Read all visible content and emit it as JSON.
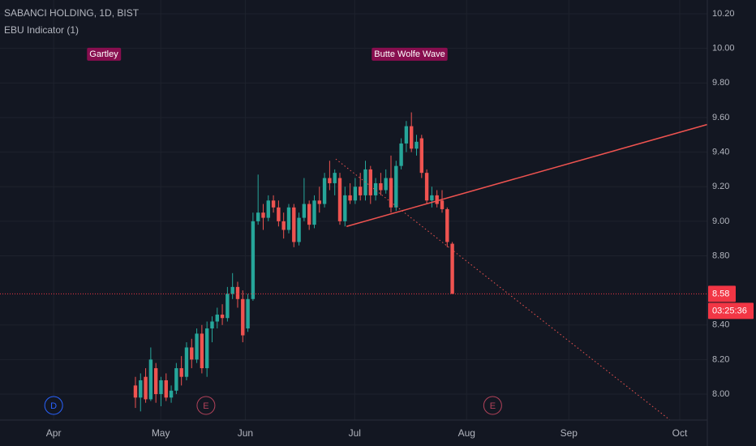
{
  "chart_data": {
    "type": "candlestick",
    "title": "SABANCI HOLDING, 1D, BIST",
    "indicator": "EBU Indicator (1)",
    "annotations": [
      "Gartley",
      "Butte Wolfe Wave"
    ],
    "up_color": "#26a69a",
    "down_color": "#ef5350",
    "x": [
      16,
      17,
      18,
      19,
      20,
      21,
      22,
      23,
      24,
      25,
      26,
      27,
      28,
      29,
      30,
      31,
      32,
      33,
      34,
      35,
      36,
      37,
      38,
      39,
      40,
      41,
      42,
      43,
      44,
      45,
      46,
      47,
      48,
      49,
      50,
      51,
      52,
      53,
      54,
      55,
      56,
      57,
      58,
      59,
      60,
      61,
      62,
      63,
      64,
      65,
      66,
      67,
      68,
      69,
      70,
      71,
      72,
      73,
      74,
      75,
      76,
      77,
      78
    ],
    "open": [
      8.05,
      7.98,
      8.1,
      7.97,
      8.15,
      8.0,
      8.08,
      7.98,
      8.02,
      8.15,
      8.1,
      8.27,
      8.2,
      8.35,
      8.15,
      8.38,
      8.42,
      8.46,
      8.44,
      8.58,
      8.62,
      8.55,
      8.38,
      8.55,
      9.0,
      9.05,
      9.02,
      9.12,
      9.08,
      9.0,
      8.95,
      9.08,
      8.88,
      9.02,
      9.1,
      8.98,
      9.12,
      9.1,
      9.25,
      9.22,
      9.25,
      9.0,
      9.15,
      9.12,
      9.2,
      9.15,
      9.3,
      9.15,
      9.22,
      9.18,
      9.25,
      9.08,
      9.32,
      9.45,
      9.55,
      9.42,
      9.48,
      9.28,
      9.12,
      9.15,
      9.12,
      9.07,
      8.87
    ],
    "high": [
      8.1,
      8.12,
      8.15,
      8.27,
      8.18,
      8.1,
      8.12,
      8.05,
      8.18,
      8.22,
      8.3,
      8.32,
      8.38,
      8.4,
      8.42,
      8.45,
      8.5,
      8.52,
      8.62,
      8.7,
      8.65,
      8.6,
      8.58,
      9.05,
      9.27,
      9.1,
      9.15,
      9.15,
      9.12,
      9.05,
      9.1,
      9.1,
      9.05,
      9.25,
      9.12,
      9.15,
      9.2,
      9.28,
      9.35,
      9.3,
      9.28,
      9.2,
      9.22,
      9.25,
      9.28,
      9.35,
      9.32,
      9.25,
      9.28,
      9.3,
      9.38,
      9.35,
      9.48,
      9.58,
      9.63,
      9.5,
      9.5,
      9.3,
      9.2,
      9.18,
      9.18,
      9.08,
      8.88
    ],
    "low": [
      7.92,
      7.9,
      7.95,
      7.96,
      7.95,
      7.93,
      7.96,
      7.95,
      8.0,
      8.05,
      8.08,
      8.15,
      8.18,
      8.12,
      8.1,
      8.3,
      8.38,
      8.4,
      8.42,
      8.55,
      8.5,
      8.3,
      8.36,
      8.54,
      8.98,
      8.95,
      9.0,
      9.05,
      8.97,
      8.9,
      8.93,
      8.85,
      8.86,
      9.0,
      8.95,
      8.96,
      9.05,
      9.08,
      9.18,
      9.15,
      8.98,
      8.97,
      9.1,
      9.1,
      9.12,
      9.12,
      9.1,
      9.12,
      9.15,
      9.16,
      9.05,
      9.06,
      9.3,
      9.4,
      9.4,
      9.38,
      9.25,
      9.1,
      9.08,
      9.08,
      9.05,
      8.85,
      8.58
    ],
    "close": [
      7.98,
      8.08,
      7.97,
      8.2,
      8.0,
      8.08,
      7.98,
      8.02,
      8.15,
      8.1,
      8.27,
      8.2,
      8.35,
      8.15,
      8.38,
      8.42,
      8.46,
      8.44,
      8.58,
      8.62,
      8.55,
      8.34,
      8.55,
      9.0,
      9.05,
      9.02,
      9.12,
      9.08,
      9.0,
      8.95,
      9.08,
      8.88,
      9.02,
      9.1,
      8.98,
      9.12,
      9.1,
      9.25,
      9.22,
      9.28,
      9.0,
      9.15,
      9.12,
      9.2,
      9.15,
      9.3,
      9.15,
      9.22,
      9.18,
      9.25,
      9.08,
      9.32,
      9.45,
      9.55,
      9.42,
      9.46,
      9.28,
      9.12,
      9.15,
      9.1,
      9.07,
      8.88,
      8.58
    ],
    "last_price": 8.58,
    "countdown": "03:25:36",
    "trend_lines": [
      {
        "x": [
          57.3,
          127.9
        ],
        "y": [
          8.97,
          9.56
        ],
        "style": "solid"
      },
      {
        "x": [
          55.2,
          120.6
        ],
        "y": [
          9.36,
          7.85
        ],
        "style": "dotted"
      }
    ],
    "events": [
      {
        "x": 0,
        "label": "D",
        "color": "#2962ff"
      },
      {
        "x": 29.8,
        "label": "E",
        "color": "#b2425a"
      },
      {
        "x": 85.9,
        "label": "E",
        "color": "#b2425a"
      }
    ],
    "xlim": [
      -10.5,
      127.9
    ],
    "xticks": [
      {
        "value": 0,
        "label": "Apr"
      },
      {
        "value": 20.95,
        "label": "May"
      },
      {
        "value": 37.5,
        "label": "Jun"
      },
      {
        "value": 58.9,
        "label": "Jul"
      },
      {
        "value": 80.8,
        "label": "Aug"
      },
      {
        "value": 100.8,
        "label": "Sep"
      },
      {
        "value": 122.5,
        "label": "Oct"
      }
    ],
    "ylim": [
      7.85,
      10.28
    ],
    "yticks": [
      {
        "value": 8,
        "label": "8.00"
      },
      {
        "value": 8.2,
        "label": "8.20"
      },
      {
        "value": 8.4,
        "label": "8.40"
      },
      {
        "value": 8.8,
        "label": "8.80"
      },
      {
        "value": 9,
        "label": "9.00"
      },
      {
        "value": 9.2,
        "label": "9.20"
      },
      {
        "value": 9.4,
        "label": "9.40"
      },
      {
        "value": 9.6,
        "label": "9.60"
      },
      {
        "value": 9.8,
        "label": "9.80"
      },
      {
        "value": 10,
        "label": "10.00"
      },
      {
        "value": 10.2,
        "label": "10.20"
      }
    ],
    "grid": true
  }
}
